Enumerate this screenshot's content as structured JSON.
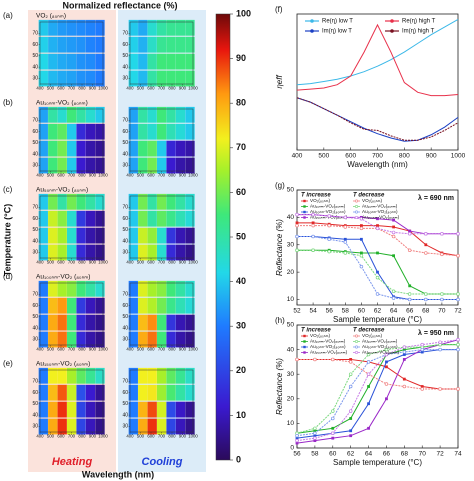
{
  "chart_data": [
    {
      "type": "heatmap",
      "title": "Normalized reflectance (%)",
      "xlabel": "Wavelength (nm)",
      "ylabel": "Temperature (°C)",
      "columns": [
        "Heating",
        "Cooling"
      ],
      "xlim": [
        400,
        1000
      ],
      "xticks": [
        400,
        500,
        600,
        700,
        800,
        900,
        1000
      ],
      "ylim": [
        25,
        80
      ],
      "yticks": [
        30,
        40,
        50,
        60,
        70
      ],
      "zlim": [
        0,
        100
      ],
      "zticks": [
        0,
        10,
        20,
        30,
        40,
        50,
        60,
        70,
        80,
        90,
        100
      ],
      "wavelengths": [
        430,
        520,
        610,
        700,
        790,
        880,
        970
      ],
      "temperatures": [
        30,
        45,
        60,
        75
      ],
      "panels": [
        {
          "label": "(a)",
          "material": "VO₂ (₈₀ₙₘ)",
          "maps": [
            [
              [
                42,
                38,
                36,
                35,
                33,
                32,
                30
              ],
              [
                42,
                38,
                36,
                35,
                33,
                32,
                30
              ],
              [
                41,
                37,
                35,
                34,
                33,
                31,
                30
              ],
              [
                40,
                36,
                34,
                33,
                32,
                31,
                30
              ]
            ],
            [
              [
                42,
                38,
                50,
                55,
                55,
                55,
                55
              ],
              [
                42,
                38,
                50,
                55,
                55,
                55,
                55
              ],
              [
                41,
                37,
                46,
                52,
                53,
                53,
                53
              ],
              [
                40,
                36,
                45,
                50,
                52,
                52,
                52
              ]
            ]
          ]
        },
        {
          "label": "(b)",
          "material": "Au₁₀ₙₘ-VO₂ (₈₀ₙₘ)",
          "maps": [
            [
              [
                35,
                55,
                60,
                40,
                12,
                8,
                6
              ],
              [
                35,
                55,
                60,
                40,
                12,
                8,
                6
              ],
              [
                35,
                55,
                58,
                40,
                15,
                10,
                8
              ],
              [
                35,
                50,
                45,
                55,
                50,
                45,
                40
              ]
            ],
            [
              [
                35,
                55,
                60,
                40,
                12,
                8,
                6
              ],
              [
                35,
                55,
                58,
                40,
                14,
                10,
                8
              ],
              [
                35,
                50,
                45,
                55,
                48,
                44,
                40
              ],
              [
                35,
                50,
                45,
                55,
                50,
                45,
                40
              ]
            ]
          ]
        },
        {
          "label": "(c)",
          "material": "Au₅₀ₙₘ-VO₂ (₈₀ₙₘ)",
          "maps": [
            [
              [
                40,
                70,
                65,
                45,
                15,
                8,
                5
              ],
              [
                40,
                70,
                65,
                45,
                15,
                8,
                5
              ],
              [
                40,
                68,
                62,
                45,
                18,
                10,
                6
              ],
              [
                40,
                60,
                50,
                60,
                55,
                50,
                45
              ]
            ],
            [
              [
                40,
                70,
                65,
                45,
                15,
                8,
                5
              ],
              [
                40,
                68,
                63,
                45,
                17,
                9,
                6
              ],
              [
                40,
                60,
                50,
                58,
                53,
                48,
                44
              ],
              [
                40,
                60,
                50,
                60,
                55,
                50,
                45
              ]
            ]
          ]
        },
        {
          "label": "(d)",
          "material": "Au₁₀₀ₙₘ-VO₂ (₈₀ₙₘ)",
          "maps": [
            [
              [
                30,
                80,
                85,
                55,
                15,
                8,
                5
              ],
              [
                30,
                80,
                85,
                55,
                15,
                8,
                5
              ],
              [
                30,
                78,
                82,
                55,
                18,
                10,
                6
              ],
              [
                30,
                70,
                65,
                62,
                55,
                50,
                45
              ]
            ],
            [
              [
                30,
                80,
                85,
                55,
                15,
                8,
                5
              ],
              [
                30,
                78,
                83,
                55,
                17,
                9,
                6
              ],
              [
                30,
                70,
                66,
                60,
                53,
                48,
                44
              ],
              [
                30,
                70,
                65,
                62,
                55,
                50,
                45
              ]
            ]
          ]
        },
        {
          "label": "(e)",
          "material": "Au₁₅₀ₙₘ-VO₂ (₈₀ₙₘ)",
          "maps": [
            [
              [
                30,
                80,
                90,
                70,
                20,
                10,
                5
              ],
              [
                30,
                80,
                90,
                70,
                20,
                10,
                5
              ],
              [
                30,
                78,
                87,
                68,
                22,
                12,
                6
              ],
              [
                30,
                72,
                72,
                65,
                58,
                52,
                46
              ]
            ],
            [
              [
                30,
                80,
                90,
                70,
                20,
                10,
                5
              ],
              [
                30,
                79,
                88,
                69,
                21,
                11,
                6
              ],
              [
                30,
                72,
                73,
                64,
                56,
                50,
                45
              ],
              [
                30,
                72,
                72,
                65,
                58,
                52,
                46
              ]
            ]
          ]
        }
      ]
    },
    {
      "type": "line",
      "panel": "(f)",
      "xlabel": "Wavelength (nm)",
      "ylabel": "ηeff",
      "x": [
        400,
        450,
        500,
        550,
        600,
        650,
        700,
        750,
        800,
        850,
        900,
        950,
        1000
      ],
      "xlim": [
        400,
        1000
      ],
      "xticks": [
        400,
        500,
        600,
        700,
        800,
        900,
        1000
      ],
      "ylim": [
        -0.2,
        1.05
      ],
      "series": [
        {
          "name": "Re(η) low T",
          "color": "#3bb8e8",
          "values": [
            0.4,
            0.41,
            0.43,
            0.45,
            0.48,
            0.52,
            0.57,
            0.63,
            0.7,
            0.78,
            0.86,
            0.93,
            1.0
          ]
        },
        {
          "name": "Im(η) low T",
          "color": "#1a3fc4",
          "values": [
            0.28,
            0.24,
            0.18,
            0.12,
            0.06,
            0.0,
            -0.05,
            -0.09,
            -0.12,
            -0.11,
            -0.06,
            0.01,
            0.1
          ]
        },
        {
          "name": "Re(η) high T",
          "color": "#e8304a",
          "values": [
            0.35,
            0.36,
            0.37,
            0.4,
            0.48,
            0.7,
            0.95,
            0.7,
            0.42,
            0.33,
            0.3,
            0.3,
            0.31
          ]
        },
        {
          "name": "Im(η) high T",
          "color": "#7a1020",
          "values": [
            0.28,
            0.24,
            0.18,
            0.12,
            0.05,
            -0.01,
            -0.02,
            -0.07,
            -0.11,
            -0.11,
            -0.08,
            -0.02,
            0.05
          ]
        }
      ]
    },
    {
      "type": "line",
      "panel": "(g)",
      "annotation": "λ = 690 nm",
      "xlabel": "Sample temperature (°C)",
      "ylabel": "Reflectance (%)",
      "x": [
        52,
        54,
        56,
        58,
        60,
        62,
        64,
        66,
        68,
        70,
        72
      ],
      "xlim": [
        52,
        72
      ],
      "xticks": [
        52,
        54,
        56,
        58,
        60,
        62,
        64,
        66,
        68,
        70,
        72
      ],
      "ylim": [
        8,
        50
      ],
      "yticks": [
        10,
        20,
        30,
        40,
        50
      ],
      "groups": [
        {
          "name": "T increase",
          "marker": "square",
          "series": [
            {
              "name": "VO₂(₈₀ₙₘ)",
              "color": "#e02828",
              "values": [
                38,
                38,
                37.5,
                37,
                37,
                37,
                36.5,
                35,
                30,
                27,
                26
              ]
            },
            {
              "name": "Au₁₀ₙₘ-VO₂(₈₀ₙₘ)",
              "color": "#22b02a",
              "values": [
                28,
                28,
                28,
                27.5,
                27,
                27,
                26,
                15,
                12,
                12,
                12
              ]
            },
            {
              "name": "Au₅₀ₙₘ-VO₂(₈₀ₙₘ)",
              "color": "#2a52d8",
              "values": [
                33,
                33,
                32.5,
                32,
                32,
                20,
                11,
                10,
                10,
                10,
                10
              ]
            },
            {
              "name": "Au₁₅₀ₙₘ-VO₂(₈₀ₙₘ)",
              "color": "#9a28c8",
              "values": [
                41,
                41,
                40.5,
                40,
                40,
                39.5,
                39,
                35,
                34,
                34,
                34
              ]
            }
          ]
        },
        {
          "name": "T decrease",
          "marker": "circle",
          "series": [
            {
              "name": "VO₂(₈₀ₙₘ)",
              "color": "#f08080",
              "values": [
                37,
                37,
                37,
                36.5,
                36,
                36,
                33,
                28,
                27,
                26.5,
                26
              ]
            },
            {
              "name": "Au₁₀ₙₘ-VO₂(₈₀ₙₘ)",
              "color": "#7ad87e",
              "values": [
                28,
                28,
                27.5,
                27,
                26,
                18,
                13,
                12,
                12,
                12,
                12
              ]
            },
            {
              "name": "Au₅₀ₙₘ-VO₂(₈₀ₙₘ)",
              "color": "#7a96ec",
              "values": [
                33,
                33,
                32,
                31,
                22,
                12,
                10.5,
                10,
                10,
                10,
                10
              ]
            },
            {
              "name": "Au₁₅₀ₙₘ-VO₂(₈₀ₙₘ)",
              "color": "#c67ae6",
              "values": [
                41,
                41,
                40.5,
                40,
                39.5,
                36,
                34.5,
                34,
                34,
                34,
                34
              ]
            }
          ]
        }
      ]
    },
    {
      "type": "line",
      "panel": "(h)",
      "annotation": "λ = 950 nm",
      "xlabel": "Sample temperature (°C)",
      "ylabel": "Reflectance (%)",
      "x": [
        56,
        58,
        60,
        62,
        64,
        66,
        68,
        70,
        72,
        74
      ],
      "xlim": [
        56,
        74
      ],
      "xticks": [
        56,
        58,
        60,
        62,
        64,
        66,
        68,
        70,
        72,
        74
      ],
      "ylim": [
        0,
        50
      ],
      "yticks": [
        0,
        10,
        20,
        30,
        40,
        50
      ],
      "groups": [
        {
          "name": "T increase",
          "marker": "square",
          "series": [
            {
              "name": "VO₂(₈₀ₙₘ)",
              "color": "#e02828",
              "values": [
                36,
                36,
                36,
                36,
                35,
                33,
                28,
                25,
                24,
                24
              ]
            },
            {
              "name": "Au₁₀ₙₘ-VO₂(₈₀ₙₘ)",
              "color": "#22b02a",
              "values": [
                6,
                7,
                8,
                12,
                25,
                38,
                40,
                41,
                42,
                42
              ]
            },
            {
              "name": "Au₅₀ₙₘ-VO₂(₈₀ₙₘ)",
              "color": "#2a52d8",
              "values": [
                4,
                5,
                6,
                7,
                18,
                35,
                38,
                39,
                40,
                40
              ]
            },
            {
              "name": "Au₁₅₀ₙₘ-VO₂(₈₀ₙₘ)",
              "color": "#9a28c8",
              "values": [
                2,
                3,
                4,
                5,
                8,
                20,
                36,
                40,
                42,
                44
              ]
            }
          ]
        },
        {
          "name": "T decrease",
          "marker": "circle",
          "series": [
            {
              "name": "VO₂(₈₀ₙₘ)",
              "color": "#f08080",
              "values": [
                36,
                36,
                36,
                35,
                30,
                26,
                25,
                24,
                24,
                24
              ]
            },
            {
              "name": "Au₁₀ₙₘ-VO₂(₈₀ₙₘ)",
              "color": "#7ad87e",
              "values": [
                6,
                8,
                15,
                30,
                38,
                40,
                41,
                41,
                42,
                42
              ]
            },
            {
              "name": "Au₅₀ₙₘ-VO₂(₈₀ₙₘ)",
              "color": "#7a96ec",
              "values": [
                5,
                6,
                12,
                25,
                35,
                38,
                39,
                40,
                40,
                40
              ]
            },
            {
              "name": "Au₁₅₀ₙₘ-VO₂(₈₀ₙₘ)",
              "color": "#c67ae6",
              "values": [
                3,
                4,
                6,
                15,
                30,
                38,
                41,
                42,
                43,
                44
              ]
            }
          ]
        }
      ]
    }
  ]
}
